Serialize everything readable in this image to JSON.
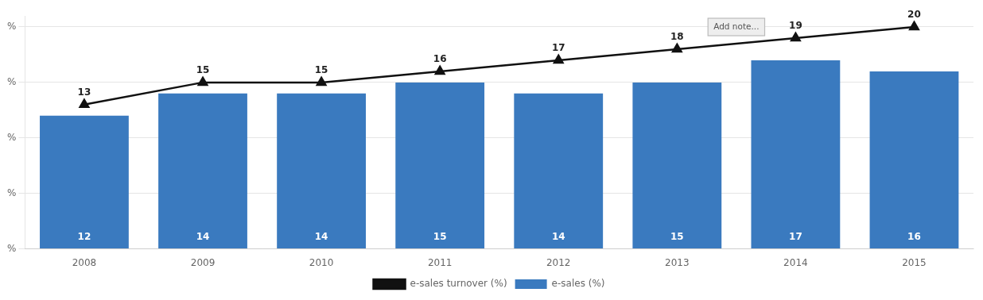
{
  "chart_data": {
    "type": "bar",
    "categories": [
      "2008",
      "2009",
      "2010",
      "2011",
      "2012",
      "2013",
      "2014",
      "2015"
    ],
    "series": [
      {
        "name": "e-sales (%)",
        "type": "bar",
        "color": "#3a7abf",
        "values": [
          12,
          14,
          14,
          15,
          14,
          15,
          17,
          16
        ]
      },
      {
        "name": "e-sales turnover (%)",
        "type": "line",
        "color": "#111111",
        "marker": "triangle",
        "line_style": "solid",
        "values": [
          13,
          15,
          15,
          16,
          17,
          18,
          19,
          20
        ]
      }
    ],
    "ylim": [
      0,
      21
    ],
    "yticks": [
      {
        "value": 0,
        "label": "%"
      },
      {
        "value": 5,
        "label": "%"
      },
      {
        "value": 10,
        "label": "%"
      },
      {
        "value": 15,
        "label": "%"
      },
      {
        "value": 20,
        "label": "%"
      }
    ],
    "grid": true,
    "legend": "bottom",
    "data_labels": true,
    "annotation": "Add note..."
  }
}
